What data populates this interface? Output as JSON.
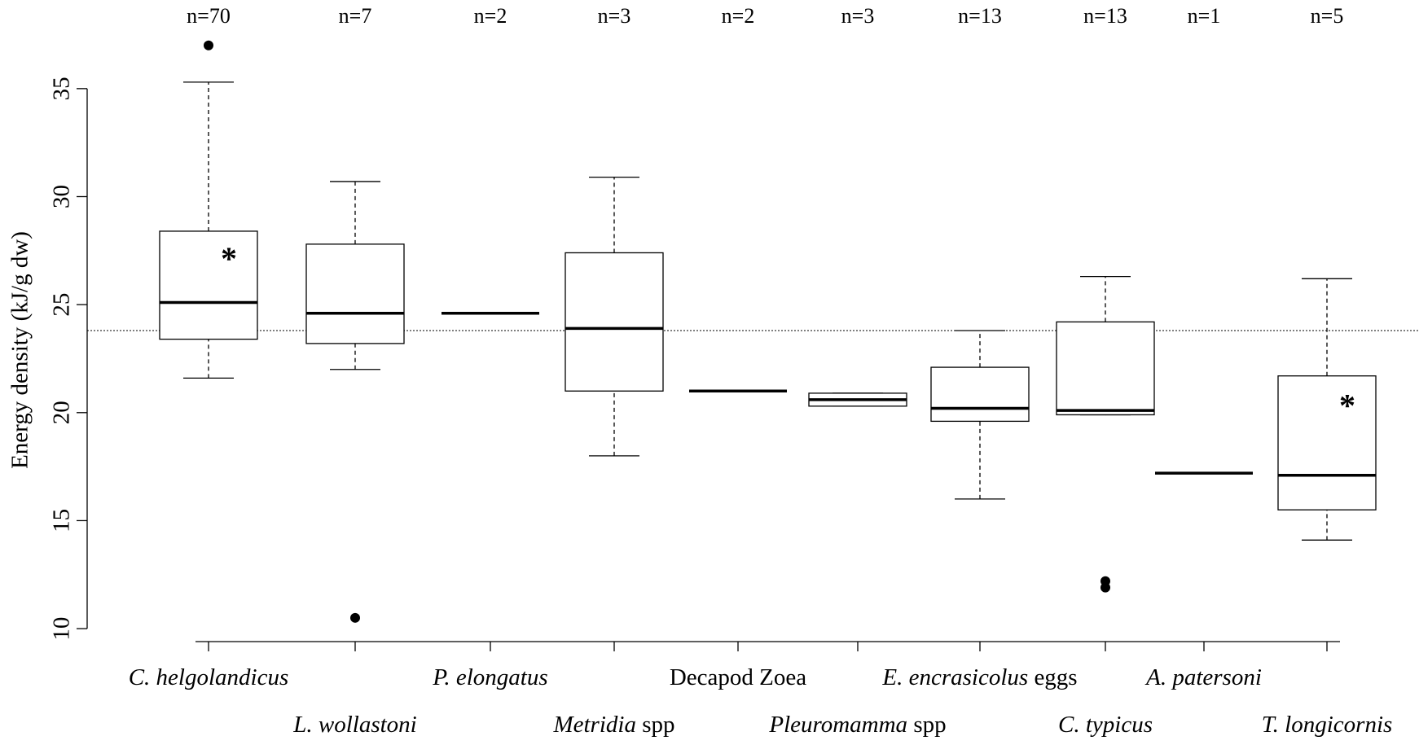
{
  "chart_data": {
    "type": "box",
    "ylabel": "Energy density (kJ/g dw)",
    "categories": [
      "C. helgolandicus",
      "L. wollastoni",
      "P. elongatus",
      "Metridia spp",
      "Decapod Zoea",
      "Pleuromamma spp",
      "E. encrasicolus eggs",
      "C. typicus",
      "A. patersoni",
      "T. longicornis"
    ],
    "italic_words": [
      2,
      2,
      2,
      1,
      0,
      1,
      2,
      2,
      2,
      2
    ],
    "n_labels": [
      "n=70",
      "n=7",
      "n=2",
      "n=3",
      "n=2",
      "n=3",
      "n=13",
      "n=13",
      "n=1",
      "n=5"
    ],
    "boxes": [
      {
        "low": 21.6,
        "q1": 23.4,
        "median": 25.1,
        "q3": 28.4,
        "high": 35.3,
        "outliers": [
          37.0
        ]
      },
      {
        "low": 22.0,
        "q1": 23.2,
        "median": 24.6,
        "q3": 27.8,
        "high": 30.7,
        "outliers": [
          10.5
        ]
      },
      {
        "low": 24.6,
        "q1": 24.6,
        "median": 24.6,
        "q3": 24.6,
        "high": 24.6,
        "outliers": []
      },
      {
        "low": 18.0,
        "q1": 21.0,
        "median": 23.9,
        "q3": 27.4,
        "high": 30.9,
        "outliers": []
      },
      {
        "low": 21.0,
        "q1": 21.0,
        "median": 21.0,
        "q3": 21.0,
        "high": 21.0,
        "outliers": []
      },
      {
        "low": 20.3,
        "q1": 20.3,
        "median": 20.6,
        "q3": 20.9,
        "high": 20.9,
        "outliers": []
      },
      {
        "low": 16.0,
        "q1": 19.6,
        "median": 20.2,
        "q3": 22.1,
        "high": 23.8,
        "outliers": []
      },
      {
        "low": 19.9,
        "q1": 19.9,
        "median": 20.1,
        "q3": 24.2,
        "high": 26.3,
        "outliers": [
          12.2,
          11.9
        ]
      },
      {
        "low": 17.2,
        "q1": 17.2,
        "median": 17.2,
        "q3": 17.2,
        "high": 17.2,
        "outliers": []
      },
      {
        "low": 14.1,
        "q1": 15.5,
        "median": 17.1,
        "q3": 21.7,
        "high": 26.2,
        "outliers": []
      }
    ],
    "annotations": [
      {
        "text": "*",
        "category": 0,
        "y": 27.2
      },
      {
        "text": "*",
        "category": 9,
        "y": 20.4
      }
    ],
    "reference_line": 23.8,
    "ylim": [
      9.4,
      38.5
    ],
    "yticks": [
      10,
      15,
      20,
      25,
      30,
      35
    ]
  }
}
